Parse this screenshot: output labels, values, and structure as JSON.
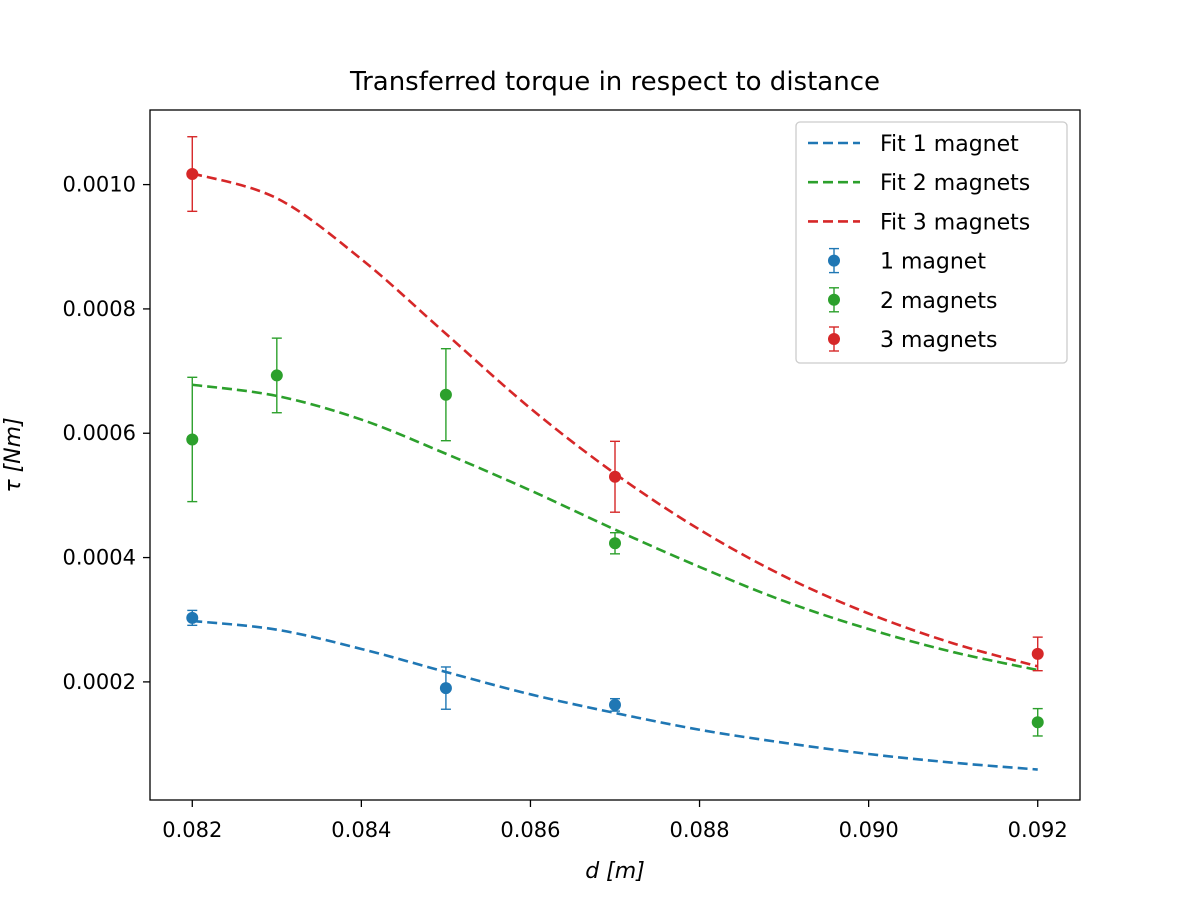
{
  "chart_data": {
    "type": "scatter",
    "title": "Transferred torque in respect to distance",
    "xlabel": "d [m]",
    "ylabel": "τ [Nm]",
    "xlim": [
      0.0815,
      0.0925
    ],
    "ylim": [
      1e-05,
      0.00112
    ],
    "x_ticks": [
      0.082,
      0.084,
      0.086,
      0.088,
      0.09,
      0.092
    ],
    "x_tick_labels": [
      "0.082",
      "0.084",
      "0.086",
      "0.088",
      "0.090",
      "0.092"
    ],
    "y_ticks": [
      0.0002,
      0.0004,
      0.0006,
      0.0008,
      0.001
    ],
    "y_tick_labels": [
      "0.0002",
      "0.0004",
      "0.0006",
      "0.0008",
      "0.0010"
    ],
    "grid": false,
    "legend_position": "top-right",
    "measurements": [
      {
        "name": "1 magnet",
        "color": "#1f77b4",
        "points": [
          {
            "x": 0.082,
            "y": 0.000303,
            "err": 1.2e-05
          },
          {
            "x": 0.085,
            "y": 0.00019,
            "err": 3.4e-05
          },
          {
            "x": 0.087,
            "y": 0.000163,
            "err": 1e-05
          }
        ]
      },
      {
        "name": "2 magnets",
        "color": "#2ca02c",
        "points": [
          {
            "x": 0.082,
            "y": 0.00059,
            "err": 0.0001
          },
          {
            "x": 0.083,
            "y": 0.000693,
            "err": 6e-05
          },
          {
            "x": 0.085,
            "y": 0.000662,
            "err": 7.4e-05
          },
          {
            "x": 0.087,
            "y": 0.000423,
            "err": 1.7e-05
          },
          {
            "x": 0.092,
            "y": 0.000135,
            "err": 2.2e-05
          }
        ]
      },
      {
        "name": "3 magnets",
        "color": "#d62728",
        "points": [
          {
            "x": 0.082,
            "y": 0.001017,
            "err": 6e-05
          },
          {
            "x": 0.087,
            "y": 0.00053,
            "err": 5.7e-05
          },
          {
            "x": 0.092,
            "y": 0.000245,
            "err": 2.7e-05
          }
        ]
      }
    ],
    "fits": [
      {
        "name": "Fit 1 magnet",
        "color": "#1f77b4",
        "x": [
          0.082,
          0.083,
          0.084,
          0.085,
          0.086,
          0.087,
          0.088,
          0.089,
          0.09,
          0.091,
          0.092
        ],
        "y": [
          0.000298,
          0.000284,
          0.000253,
          0.000216,
          0.00018,
          0.00015,
          0.000123,
          0.000102,
          8.4e-05,
          7e-05,
          5.9e-05
        ]
      },
      {
        "name": "Fit 2 magnets",
        "color": "#2ca02c",
        "x": [
          0.082,
          0.083,
          0.084,
          0.085,
          0.086,
          0.087,
          0.088,
          0.089,
          0.09,
          0.091,
          0.092
        ],
        "y": [
          0.000678,
          0.00066,
          0.000622,
          0.000567,
          0.000508,
          0.000445,
          0.000385,
          0.00033,
          0.000285,
          0.000248,
          0.000219
        ]
      },
      {
        "name": "Fit 3 magnets",
        "color": "#d62728",
        "x": [
          0.082,
          0.083,
          0.084,
          0.085,
          0.086,
          0.087,
          0.088,
          0.089,
          0.09,
          0.091,
          0.092
        ],
        "y": [
          0.001018,
          0.000978,
          0.00088,
          0.00076,
          0.00064,
          0.000535,
          0.000445,
          0.00037,
          0.00031,
          0.000262,
          0.000225
        ]
      }
    ],
    "legend": [
      {
        "label": "Fit 1 magnet",
        "kind": "line",
        "color": "#1f77b4"
      },
      {
        "label": "Fit 2 magnets",
        "kind": "line",
        "color": "#2ca02c"
      },
      {
        "label": "Fit 3 magnets",
        "kind": "line",
        "color": "#d62728"
      },
      {
        "label": "1 magnet",
        "kind": "errorbar",
        "color": "#1f77b4"
      },
      {
        "label": "2 magnets",
        "kind": "errorbar",
        "color": "#2ca02c"
      },
      {
        "label": "3 magnets",
        "kind": "errorbar",
        "color": "#d62728"
      }
    ]
  }
}
